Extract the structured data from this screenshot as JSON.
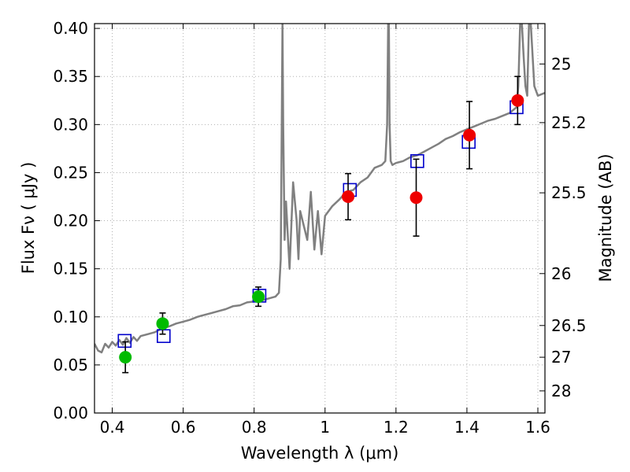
{
  "chart_data": {
    "type": "scatter",
    "title": "",
    "xlabel": "Wavelength  λ (μm)",
    "ylabel": "Flux  Fν  ( μJy )",
    "ylabel_right": "Magnitude (AB)",
    "xlim": [
      0.35,
      1.62
    ],
    "ylim": [
      0.0,
      0.405
    ],
    "grid": true,
    "x_ticks": [
      0.4,
      0.6,
      0.8,
      1.0,
      1.2,
      1.4,
      1.6
    ],
    "x_tick_labels": [
      "0.4",
      "0.6",
      "0.8",
      "1",
      "1.2",
      "1.4",
      "1.6"
    ],
    "y_ticks": [
      0.0,
      0.05,
      0.1,
      0.15,
      0.2,
      0.25,
      0.3,
      0.35,
      0.4
    ],
    "y_tick_labels": [
      "0.00",
      "0.05",
      "0.10",
      "0.15",
      "0.20",
      "0.25",
      "0.30",
      "0.35",
      "0.40"
    ],
    "right_ticks": [
      {
        "label": "25",
        "flux": 0.363
      },
      {
        "label": "25.2",
        "flux": 0.302
      },
      {
        "label": "25.5",
        "flux": 0.229
      },
      {
        "label": "26",
        "flux": 0.145
      },
      {
        "label": "26.5",
        "flux": 0.091
      },
      {
        "label": "27",
        "flux": 0.058
      },
      {
        "label": "28",
        "flux": 0.023
      }
    ],
    "colors": {
      "spectrum": "#808080",
      "model": "#0000cc",
      "green": "#00bb00",
      "red": "#ee0000",
      "errorbar": "#000000",
      "grid": "#b0b0b0"
    },
    "series": [
      {
        "name": "spectrum",
        "kind": "line",
        "x": [
          0.35,
          0.36,
          0.37,
          0.38,
          0.39,
          0.4,
          0.41,
          0.42,
          0.43,
          0.44,
          0.45,
          0.46,
          0.47,
          0.48,
          0.5,
          0.52,
          0.54,
          0.56,
          0.58,
          0.6,
          0.62,
          0.64,
          0.66,
          0.68,
          0.7,
          0.72,
          0.74,
          0.76,
          0.78,
          0.8,
          0.82,
          0.84,
          0.86,
          0.87,
          0.875,
          0.878,
          0.88,
          0.882,
          0.884,
          0.886,
          0.89,
          0.9,
          0.91,
          0.92,
          0.925,
          0.93,
          0.94,
          0.95,
          0.96,
          0.97,
          0.98,
          0.99,
          1.0,
          1.02,
          1.04,
          1.06,
          1.08,
          1.1,
          1.12,
          1.14,
          1.16,
          1.17,
          1.175,
          1.178,
          1.18,
          1.182,
          1.185,
          1.19,
          1.2,
          1.22,
          1.24,
          1.26,
          1.28,
          1.3,
          1.32,
          1.34,
          1.36,
          1.38,
          1.4,
          1.42,
          1.44,
          1.46,
          1.48,
          1.5,
          1.52,
          1.54,
          1.545,
          1.55,
          1.555,
          1.56,
          1.565,
          1.57,
          1.575,
          1.58,
          1.59,
          1.6,
          1.62
        ],
        "y": [
          0.072,
          0.065,
          0.063,
          0.072,
          0.068,
          0.074,
          0.07,
          0.076,
          0.071,
          0.078,
          0.073,
          0.079,
          0.075,
          0.08,
          0.082,
          0.084,
          0.088,
          0.09,
          0.093,
          0.095,
          0.097,
          0.1,
          0.102,
          0.104,
          0.106,
          0.108,
          0.111,
          0.112,
          0.115,
          0.116,
          0.117,
          0.119,
          0.121,
          0.125,
          0.16,
          0.3,
          0.405,
          0.3,
          0.24,
          0.18,
          0.22,
          0.15,
          0.24,
          0.2,
          0.16,
          0.21,
          0.195,
          0.18,
          0.23,
          0.17,
          0.21,
          0.165,
          0.205,
          0.215,
          0.222,
          0.23,
          0.232,
          0.24,
          0.245,
          0.255,
          0.258,
          0.262,
          0.3,
          0.405,
          0.405,
          0.3,
          0.262,
          0.258,
          0.26,
          0.262,
          0.266,
          0.268,
          0.272,
          0.276,
          0.28,
          0.285,
          0.288,
          0.292,
          0.295,
          0.298,
          0.301,
          0.304,
          0.306,
          0.309,
          0.312,
          0.318,
          0.34,
          0.405,
          0.405,
          0.37,
          0.34,
          0.33,
          0.405,
          0.405,
          0.34,
          0.33,
          0.333
        ]
      },
      {
        "name": "model",
        "kind": "open-square",
        "x": [
          0.435,
          0.545,
          0.815,
          1.07,
          1.26,
          1.405,
          1.54
        ],
        "y": [
          0.075,
          0.08,
          0.122,
          0.232,
          0.262,
          0.282,
          0.318
        ]
      },
      {
        "name": "green",
        "kind": "filled-circle",
        "x": [
          0.437,
          0.542,
          0.812
        ],
        "y": [
          0.058,
          0.093,
          0.121
        ],
        "yerr": [
          0.016,
          0.011,
          0.01
        ]
      },
      {
        "name": "red",
        "kind": "filled-circle",
        "x": [
          1.065,
          1.257,
          1.407,
          1.543
        ],
        "y": [
          0.225,
          0.224,
          0.289,
          0.325
        ],
        "yerr": [
          0.024,
          0.04,
          0.035,
          0.025
        ]
      }
    ]
  }
}
